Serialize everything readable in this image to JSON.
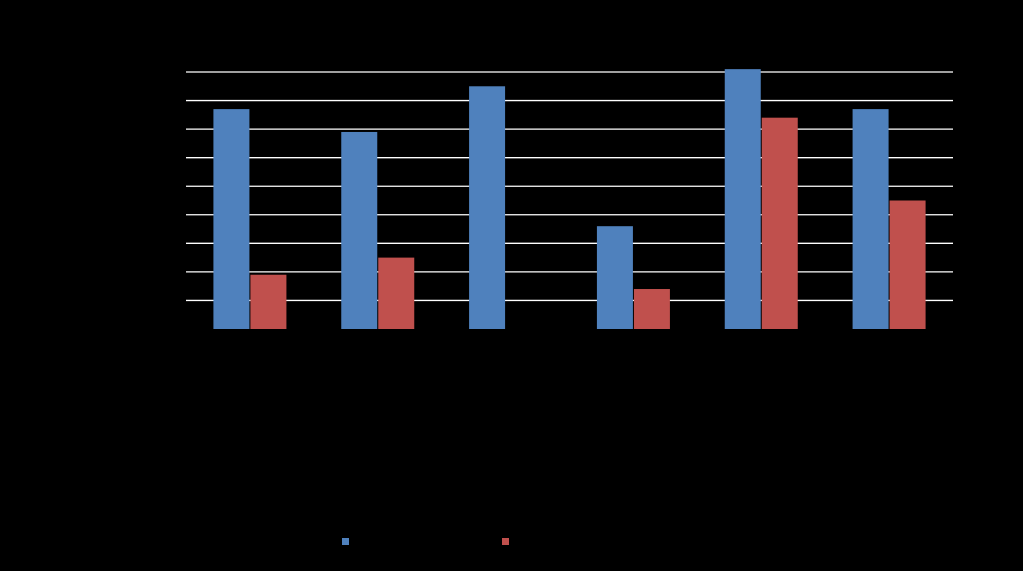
{
  "chart_data": {
    "type": "bar",
    "categories": [
      "",
      "",
      "",
      "",
      "",
      ""
    ],
    "series": [
      {
        "color": "#4F81BD",
        "values": [
          7.7,
          6.9,
          8.5,
          3.6,
          9.1,
          7.7
        ]
      },
      {
        "color": "#C0504D",
        "values": [
          1.9,
          2.5,
          0,
          1.4,
          7.4,
          4.5
        ]
      }
    ],
    "ylim": [
      0,
      9
    ],
    "grid": true,
    "legend": "bottom",
    "background": "#000000",
    "gridline_color": "#FFFFFF"
  }
}
